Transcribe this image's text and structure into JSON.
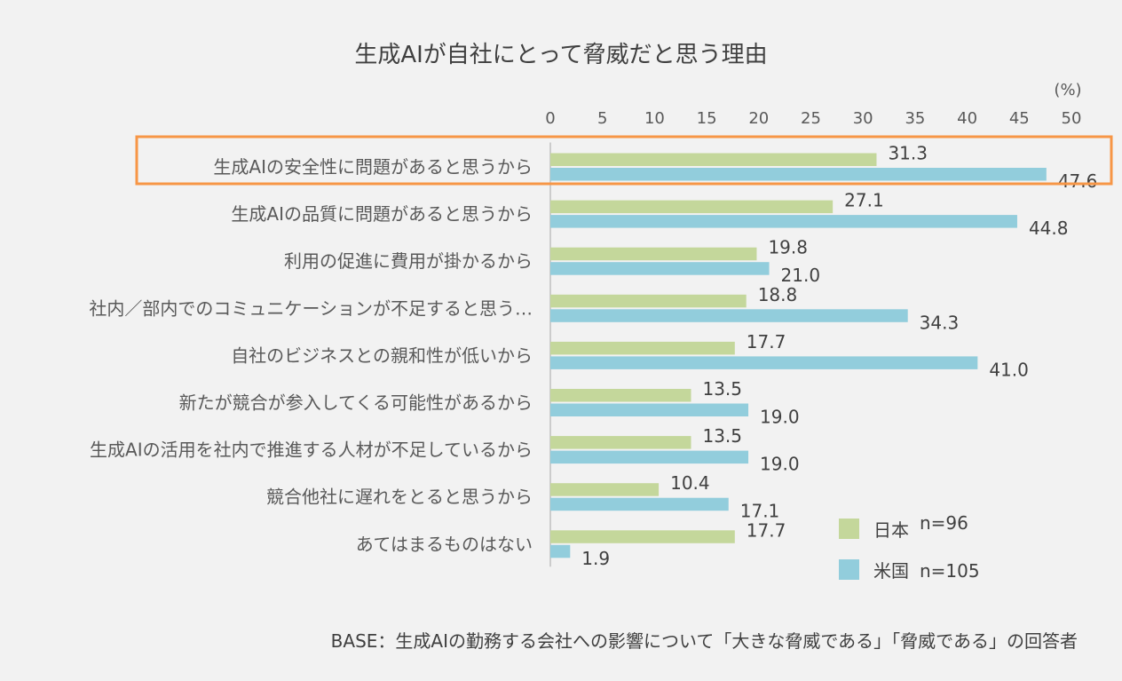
{
  "chart_data": {
    "type": "bar",
    "orientation": "horizontal",
    "title": "生成AIが自社にとって脅威だと思う理由",
    "unit": "(%)",
    "xlim": [
      0,
      50
    ],
    "ticks": [
      "0",
      "5",
      "10",
      "15",
      "20",
      "25",
      "30",
      "35",
      "40",
      "45",
      "50"
    ],
    "categories": [
      "生成AIの安全性に問題があると思うから",
      "生成AIの品質に問題があると思うから",
      "利用の促進に費用が掛かるから",
      "社内／部内でのコミュニケーションが不足すると思う…",
      "自社のビジネスとの親和性が低いから",
      "新たが競合が参入してくる可能性があるから",
      "生成AIの活用を社内で推進する人材が不足しているから",
      "競合他社に遅れをとると思うから",
      "あてはまるものはない"
    ],
    "series": [
      {
        "name": "日本",
        "n": "n=96",
        "color": "#c4d79b",
        "values": [
          31.3,
          27.1,
          19.8,
          18.8,
          17.7,
          13.5,
          13.5,
          10.4,
          17.7
        ],
        "labels": [
          "31.3",
          "27.1",
          "19.8",
          "18.8",
          "17.7",
          "13.5",
          "13.5",
          "10.4",
          "17.7"
        ]
      },
      {
        "name": "米国",
        "n": "n=105",
        "color": "#92cddc",
        "values": [
          47.6,
          44.8,
          21.0,
          34.3,
          41.0,
          19.0,
          19.0,
          17.1,
          1.9
        ],
        "labels": [
          "47.6",
          "44.8",
          "21.0",
          "34.3",
          "41.0",
          "19.0",
          "19.0",
          "17.1",
          "1.9"
        ]
      }
    ],
    "highlight_index": 0,
    "highlight_color": "#f79646",
    "note": "BASE：生成AIの勤務する会社への影響について「大きな脅威である」「脅威である」の回答者"
  }
}
